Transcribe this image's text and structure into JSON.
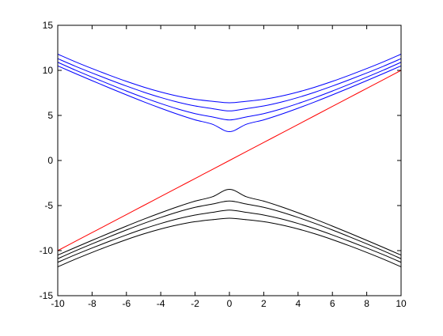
{
  "figure": {
    "background": "#ffffff"
  },
  "chart_data": {
    "type": "line",
    "title": "",
    "xlabel": "",
    "ylabel": "",
    "xlim": [
      -10,
      10
    ],
    "ylim": [
      -15,
      15
    ],
    "xticks": [
      -10,
      -8,
      -6,
      -4,
      -2,
      0,
      2,
      4,
      6,
      8,
      10
    ],
    "yticks": [
      -15,
      -10,
      -5,
      0,
      5,
      10,
      15
    ],
    "grid": false,
    "legend": "none",
    "x": [
      -10,
      -9,
      -8,
      -7,
      -6,
      -5,
      -4,
      -3,
      -2,
      -1,
      0,
      1,
      2,
      3,
      4,
      5,
      6,
      7,
      8,
      9,
      10
    ],
    "series": [
      {
        "color": "#0000ff",
        "values": [
          10.5,
          9.67,
          8.86,
          8.06,
          7.28,
          6.52,
          5.8,
          5.12,
          4.51,
          4.03,
          3.2,
          4.03,
          4.51,
          5.12,
          5.8,
          6.52,
          7.28,
          8.06,
          8.86,
          9.67,
          10.5
        ]
      },
      {
        "color": "#0000ff",
        "values": [
          10.9,
          10.05,
          9.25,
          8.47,
          7.71,
          6.99,
          6.32,
          5.71,
          5.2,
          4.84,
          4.5,
          4.84,
          5.2,
          5.71,
          6.32,
          6.99,
          7.71,
          8.47,
          9.25,
          10.05,
          10.9
        ]
      },
      {
        "color": "#0000ff",
        "values": [
          11.3,
          10.48,
          9.71,
          8.97,
          8.26,
          7.59,
          6.99,
          6.47,
          6.05,
          5.76,
          5.5,
          5.76,
          6.05,
          6.47,
          6.99,
          7.59,
          8.26,
          8.97,
          9.71,
          10.48,
          11.3
        ]
      },
      {
        "color": "#0000ff",
        "values": [
          11.8,
          10.97,
          10.2,
          9.47,
          8.78,
          8.15,
          7.6,
          7.14,
          6.79,
          6.57,
          6.4,
          6.57,
          6.79,
          7.14,
          7.6,
          8.15,
          8.78,
          9.47,
          10.2,
          10.97,
          11.8
        ]
      },
      {
        "color": "#ff0000",
        "values": [
          -10,
          -9,
          -8,
          -7,
          -6,
          -5,
          -4,
          -3,
          -2,
          -1,
          0,
          1,
          2,
          3,
          4,
          5,
          6,
          7,
          8,
          9,
          10
        ]
      },
      {
        "color": "#000000",
        "values": [
          -10.5,
          -9.67,
          -8.86,
          -8.06,
          -7.28,
          -6.52,
          -5.8,
          -5.12,
          -4.51,
          -4.03,
          -3.2,
          -4.03,
          -4.51,
          -5.12,
          -5.8,
          -6.52,
          -7.28,
          -8.06,
          -8.86,
          -9.67,
          -10.5
        ]
      },
      {
        "color": "#000000",
        "values": [
          -10.9,
          -10.05,
          -9.25,
          -8.47,
          -7.71,
          -6.99,
          -6.32,
          -5.71,
          -5.2,
          -4.84,
          -4.5,
          -4.84,
          -5.2,
          -5.71,
          -6.32,
          -6.99,
          -7.71,
          -8.47,
          -9.25,
          -10.05,
          -10.9
        ]
      },
      {
        "color": "#000000",
        "values": [
          -11.3,
          -10.48,
          -9.71,
          -8.97,
          -8.26,
          -7.59,
          -6.99,
          -6.47,
          -6.05,
          -5.76,
          -5.5,
          -5.76,
          -6.05,
          -6.47,
          -6.99,
          -7.59,
          -8.26,
          -8.97,
          -9.71,
          -10.48,
          -11.3
        ]
      },
      {
        "color": "#000000",
        "values": [
          -11.8,
          -10.97,
          -10.2,
          -9.47,
          -8.78,
          -8.15,
          -7.6,
          -7.14,
          -6.79,
          -6.57,
          -6.4,
          -6.57,
          -6.79,
          -7.14,
          -7.6,
          -8.15,
          -8.78,
          -9.47,
          -10.2,
          -10.97,
          -11.8
        ]
      }
    ]
  }
}
